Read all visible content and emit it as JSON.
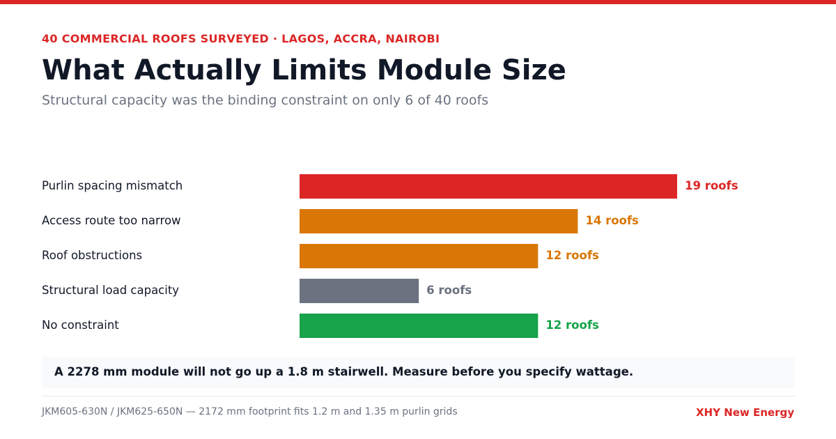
{
  "header": {
    "eyebrow": "40 COMMERCIAL ROOFS SURVEYED · LAGOS, ACCRA, NAIROBI",
    "title": "What Actually Limits Module Size",
    "subtitle": "Structural capacity was the binding constraint on only 6 of 40 roofs"
  },
  "chart_data": {
    "type": "bar",
    "orientation": "horizontal",
    "categories": [
      "Purlin spacing mismatch",
      "Access route too narrow",
      "Roof obstructions",
      "Structural load capacity",
      "No constraint"
    ],
    "values": [
      19,
      14,
      12,
      6,
      12
    ],
    "value_labels": [
      "19 roofs",
      "14 roofs",
      "12 roofs",
      "6 roofs",
      "12 roofs"
    ],
    "colors": [
      "#dc2626",
      "#d97706",
      "#d97706",
      "#6b7280",
      "#16a34a"
    ],
    "xlim": [
      0,
      19
    ],
    "grid": false,
    "legend": "none"
  },
  "callout": {
    "text": "A 2278 mm module will not go up a 1.8 m stairwell. Measure before you specify wattage."
  },
  "footer": {
    "note": "JKM605-630N / JKM625-650N — 2172 mm footprint fits 1.2 m and 1.35 m purlin grids",
    "brand": "XHY New Energy"
  }
}
